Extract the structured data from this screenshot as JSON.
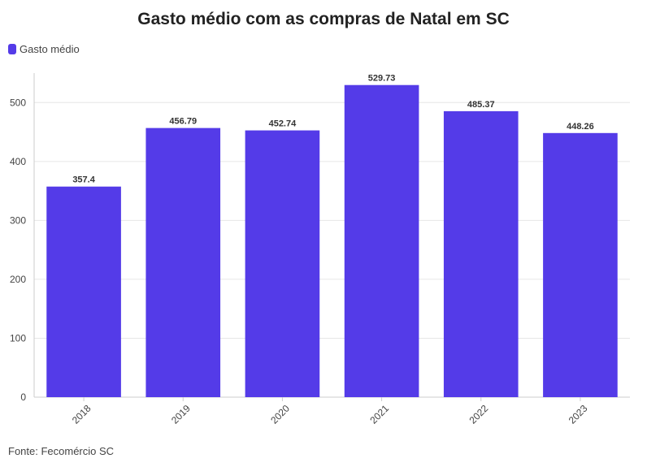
{
  "title": "Gasto médio com as compras de Natal em SC",
  "source": "Fonte: Fecomércio SC",
  "legend": {
    "label": "Gasto médio",
    "color": "#543be8"
  },
  "chart_data": {
    "type": "bar",
    "title": "Gasto médio com as compras de Natal em SC",
    "xlabel": "",
    "ylabel": "",
    "categories": [
      "2018",
      "2019",
      "2020",
      "2021",
      "2022",
      "2023"
    ],
    "series": [
      {
        "name": "Gasto médio",
        "values": [
          357.4,
          456.79,
          452.74,
          529.73,
          485.37,
          448.26
        ],
        "color": "#543be8"
      }
    ],
    "data_labels": [
      "357.4",
      "456.79",
      "452.74",
      "529.73",
      "485.37",
      "448.26"
    ],
    "ylim": [
      0,
      550
    ],
    "yticks": [
      0,
      100,
      200,
      300,
      400,
      500
    ],
    "grid": true,
    "legend_position": "top-left"
  }
}
